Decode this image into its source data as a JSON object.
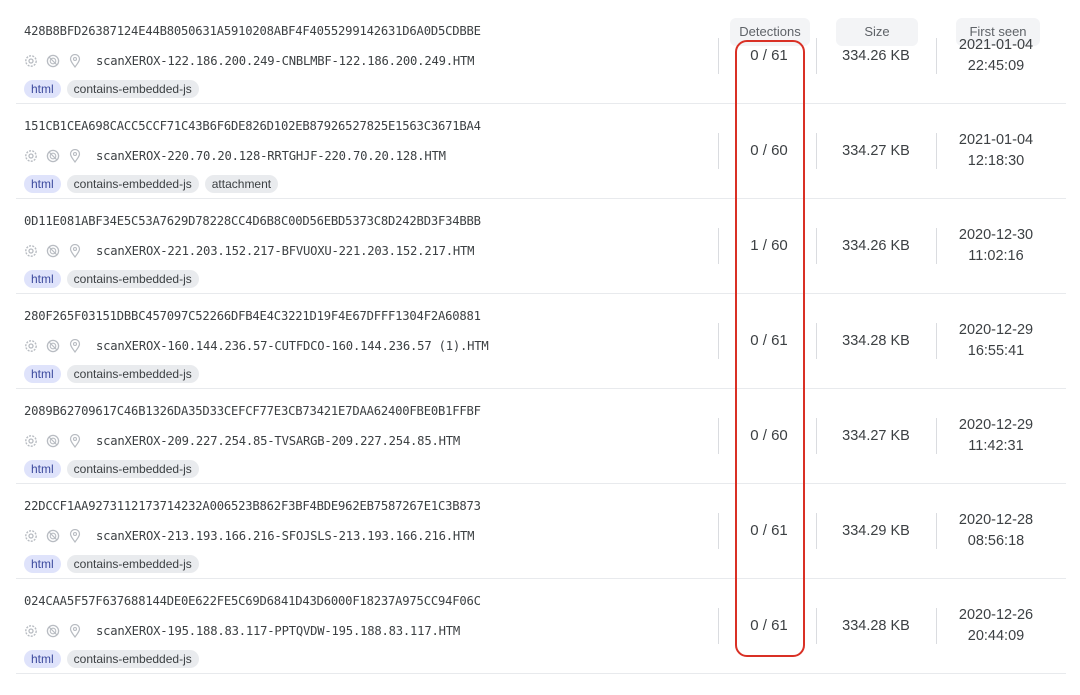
{
  "columns": {
    "detections": "Detections",
    "size": "Size",
    "first_seen": "First seen"
  },
  "icons": [
    "settings-gear-icon",
    "no-entry-icon",
    "location-pin-icon"
  ],
  "highlight_color": "#d93025",
  "rows": [
    {
      "hash": "428B8BFD26387124E44B8050631A5910208ABF4F4055299142631D6A0D5CDBBE",
      "filename": "scanXEROX-122.186.200.249-CNBLMBF-122.186.200.249.HTM",
      "tags": [
        "html",
        "contains-embedded-js"
      ],
      "detections": "0 / 61",
      "size": "334.26 KB",
      "date": "2021-01-04",
      "time": "22:45:09"
    },
    {
      "hash": "151CB1CEA698CACC5CCF71C43B6F6DE826D102EB87926527825E1563C3671BA4",
      "filename": "scanXEROX-220.70.20.128-RRTGHJF-220.70.20.128.HTM",
      "tags": [
        "html",
        "contains-embedded-js",
        "attachment"
      ],
      "detections": "0 / 60",
      "size": "334.27 KB",
      "date": "2021-01-04",
      "time": "12:18:30"
    },
    {
      "hash": "0D11E081ABF34E5C53A7629D78228CC4D6B8C00D56EBD5373C8D242BD3F34BBB",
      "filename": "scanXEROX-221.203.152.217-BFVUOXU-221.203.152.217.HTM",
      "tags": [
        "html",
        "contains-embedded-js"
      ],
      "detections": "1 / 60",
      "size": "334.26 KB",
      "date": "2020-12-30",
      "time": "11:02:16"
    },
    {
      "hash": "280F265F03151DBBC457097C52266DFB4E4C3221D19F4E67DFFF1304F2A60881",
      "filename": "scanXEROX-160.144.236.57-CUTFDCO-160.144.236.57 (1).HTM",
      "tags": [
        "html",
        "contains-embedded-js"
      ],
      "detections": "0 / 61",
      "size": "334.28 KB",
      "date": "2020-12-29",
      "time": "16:55:41"
    },
    {
      "hash": "2089B62709617C46B1326DA35D33CEFCF77E3CB73421E7DAA62400FBE0B1FFBF",
      "filename": "scanXEROX-209.227.254.85-TVSARGB-209.227.254.85.HTM",
      "tags": [
        "html",
        "contains-embedded-js"
      ],
      "detections": "0 / 60",
      "size": "334.27 KB",
      "date": "2020-12-29",
      "time": "11:42:31"
    },
    {
      "hash": "22DCCF1AA9273112173714232A006523B862F3BF4BDE962EB7587267E1C3B873",
      "filename": "scanXEROX-213.193.166.216-SFOJSLS-213.193.166.216.HTM",
      "tags": [
        "html",
        "contains-embedded-js"
      ],
      "detections": "0 / 61",
      "size": "334.29 KB",
      "date": "2020-12-28",
      "time": "08:56:18"
    },
    {
      "hash": "024CAA5F57F637688144DE0E622FE5C69D6841D43D6000F18237A975CC94F06C",
      "filename": "scanXEROX-195.188.83.117-PPTQVDW-195.188.83.117.HTM",
      "tags": [
        "html",
        "contains-embedded-js"
      ],
      "detections": "0 / 61",
      "size": "334.28 KB",
      "date": "2020-12-26",
      "time": "20:44:09"
    }
  ]
}
